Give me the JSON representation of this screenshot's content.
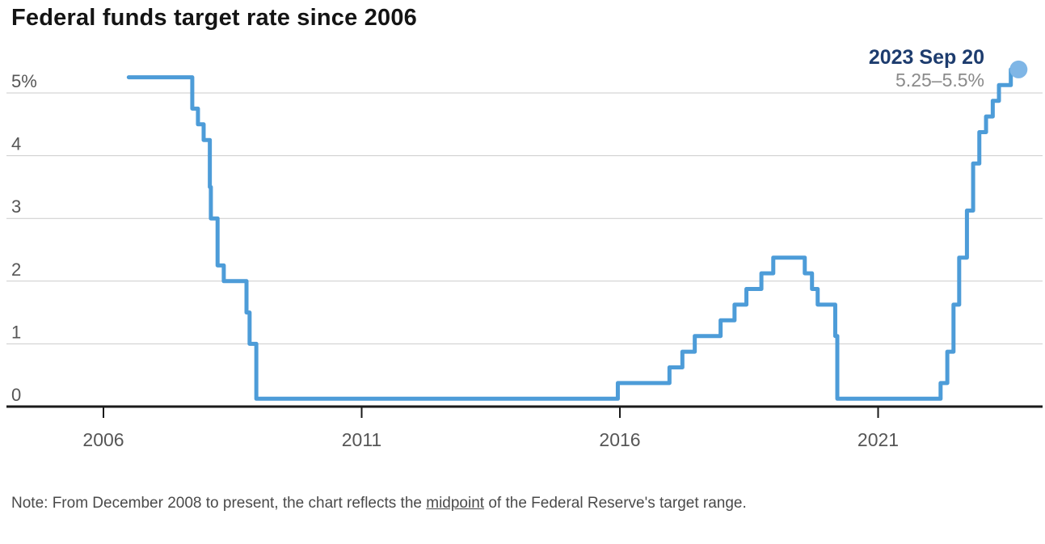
{
  "title": "Federal funds target rate since 2006",
  "annotation": {
    "date": "2023 Sep 20",
    "range": "5.25–5.5%"
  },
  "note": {
    "prefix": "Note: From December 2008 to present, the chart reflects the ",
    "underlined": "midpoint",
    "suffix": " of the Federal Reserve's target range."
  },
  "chart_data": {
    "type": "line",
    "subtype": "step",
    "title": "Federal funds target rate since 2006",
    "series": [
      {
        "name": "Federal funds target rate (midpoint of target range since Dec 2008)",
        "points": [
          [
            2006.49,
            5.25
          ],
          [
            2007.72,
            4.75
          ],
          [
            2007.83,
            4.5
          ],
          [
            2007.94,
            4.25
          ],
          [
            2008.06,
            3.5
          ],
          [
            2008.08,
            3.0
          ],
          [
            2008.21,
            2.25
          ],
          [
            2008.33,
            2.0
          ],
          [
            2008.77,
            1.5
          ],
          [
            2008.83,
            1.0
          ],
          [
            2008.96,
            0.125
          ],
          [
            2015.96,
            0.375
          ],
          [
            2016.96,
            0.625
          ],
          [
            2017.21,
            0.875
          ],
          [
            2017.45,
            1.125
          ],
          [
            2017.95,
            1.375
          ],
          [
            2018.22,
            1.625
          ],
          [
            2018.45,
            1.875
          ],
          [
            2018.74,
            2.125
          ],
          [
            2018.97,
            2.375
          ],
          [
            2019.58,
            2.125
          ],
          [
            2019.72,
            1.875
          ],
          [
            2019.83,
            1.625
          ],
          [
            2020.17,
            1.125
          ],
          [
            2020.21,
            0.125
          ],
          [
            2022.21,
            0.375
          ],
          [
            2022.34,
            0.875
          ],
          [
            2022.46,
            1.625
          ],
          [
            2022.57,
            2.375
          ],
          [
            2022.72,
            3.125
          ],
          [
            2022.84,
            3.875
          ],
          [
            2022.96,
            4.375
          ],
          [
            2023.09,
            4.625
          ],
          [
            2023.22,
            4.875
          ],
          [
            2023.34,
            5.125
          ],
          [
            2023.57,
            5.375
          ],
          [
            2023.72,
            5.375
          ]
        ]
      }
    ],
    "end_point": {
      "x": 2023.72,
      "y": 5.375,
      "label_date": "2023 Sep 20",
      "label_value": "5.25–5.5%"
    },
    "x_ticks": [
      {
        "value": 2006,
        "label": "2006"
      },
      {
        "value": 2011,
        "label": "2011"
      },
      {
        "value": 2016,
        "label": "2016"
      },
      {
        "value": 2021,
        "label": "2021"
      }
    ],
    "y_ticks": [
      {
        "value": 5,
        "label": "5%"
      },
      {
        "value": 4,
        "label": "4"
      },
      {
        "value": 3,
        "label": "3"
      },
      {
        "value": 2,
        "label": "2"
      },
      {
        "value": 1,
        "label": "1"
      },
      {
        "value": 0,
        "label": "0"
      }
    ],
    "xlim": [
      2004.1,
      2024.2
    ],
    "ylim": [
      0,
      5.8
    ],
    "grid": "horizontal",
    "legend": "none",
    "colors": {
      "line": "#4d9cd8",
      "end_dot": "#7fb6e6",
      "gridline": "#cbcbcb",
      "axis": "#1a1a1a",
      "tick_label": "#565656",
      "title": "#141414",
      "annotation_date": "#1d3c6e",
      "annotation_range": "#8a8a8a",
      "note_text": "#4a4a4a"
    }
  }
}
